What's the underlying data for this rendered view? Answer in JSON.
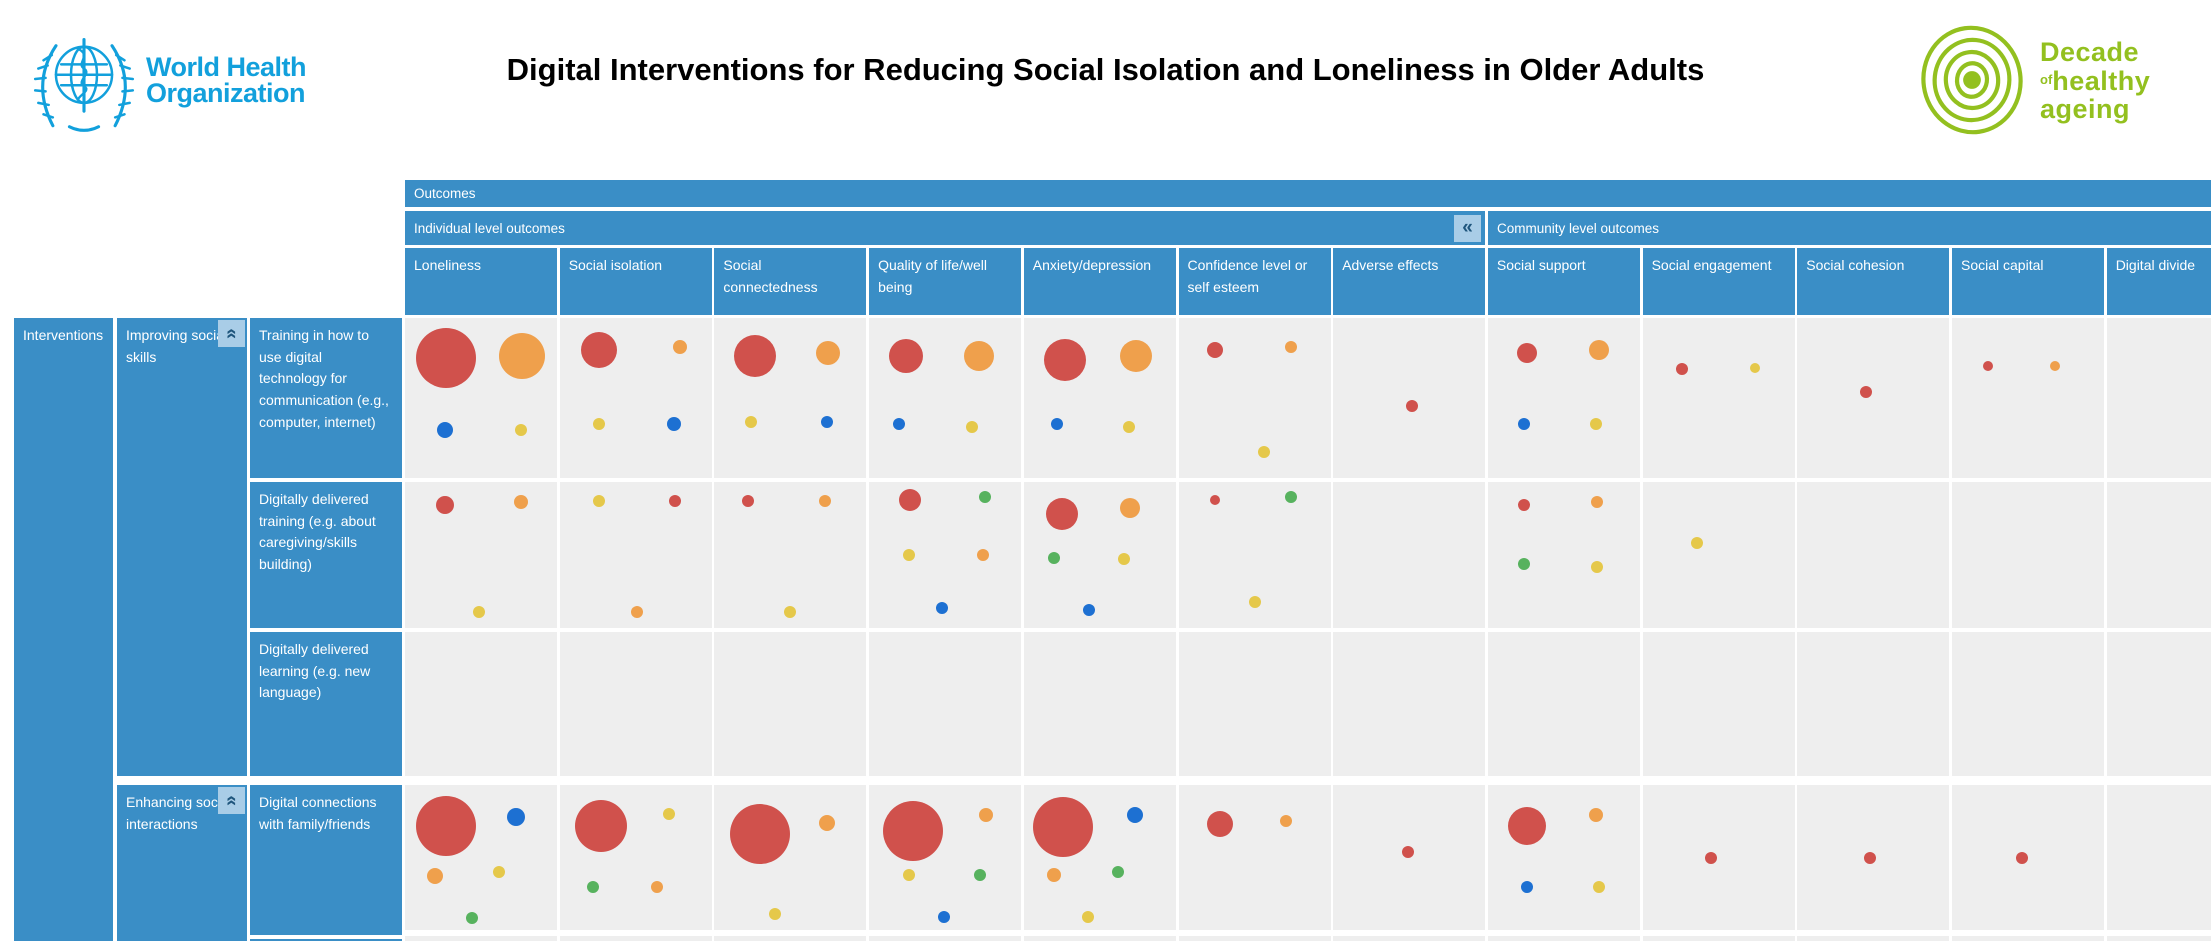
{
  "header": {
    "title": "Digital Interventions for Reducing Social Isolation and Loneliness in Older Adults",
    "who_logo": {
      "line1": "World Health",
      "line2": "Organization"
    },
    "decade_logo": {
      "word1": "Decade",
      "word2_small": "of",
      "word2": "healthy",
      "word3": "ageing"
    }
  },
  "icons": {
    "collapse_columns": "«",
    "collapse_group": "«",
    "who_emblem": "who-globe-staff-laurel",
    "decade_emblem": "concentric-rings"
  },
  "colors": {
    "red": "#D0514C",
    "orange": "#EFA04C",
    "yellow": "#E5C84A",
    "blue": "#1D70D2",
    "green": "#57B25E",
    "header_blue": "#3A8EC6",
    "header_blue_light": "#A9CDE7",
    "chevron_dark": "#1F567D",
    "cell_bg": "#EEEEEE",
    "who_blue": "#12A0DC",
    "decade_green": "#93C01F"
  },
  "table": {
    "outcomes_label": "Outcomes",
    "interventions_label": "Interventions",
    "individual_header": "Individual level outcomes",
    "community_header": "Community level outcomes",
    "columns": [
      "Loneliness",
      "Social isolation",
      "Social connectedness",
      "Quality of life/well being",
      "Anxiety/depression",
      "Confidence level or self esteem",
      "Adverse effects",
      "Social support",
      "Social engagement",
      "Social cohesion",
      "Social capital",
      "Digital divide"
    ],
    "groups": [
      {
        "label": "Improving social skills",
        "rows": [
          {
            "label": "Training in how to use digital technology for communication (e.g., computer, internet)",
            "cells": [
              [
                {
                  "c": "red",
                  "r": 30,
                  "x": 27,
                  "y": 25
                },
                {
                  "c": "orange",
                  "r": 23,
                  "x": 77,
                  "y": 24
                },
                {
                  "c": "blue",
                  "r": 8,
                  "x": 26,
                  "y": 70
                },
                {
                  "c": "yellow",
                  "r": 6,
                  "x": 76,
                  "y": 70
                }
              ],
              [
                {
                  "c": "red",
                  "r": 18,
                  "x": 26,
                  "y": 20
                },
                {
                  "c": "orange",
                  "r": 7,
                  "x": 79,
                  "y": 18
                },
                {
                  "c": "yellow",
                  "r": 6,
                  "x": 26,
                  "y": 66
                },
                {
                  "c": "blue",
                  "r": 7,
                  "x": 75,
                  "y": 66
                }
              ],
              [
                {
                  "c": "red",
                  "r": 21,
                  "x": 27,
                  "y": 24
                },
                {
                  "c": "orange",
                  "r": 12,
                  "x": 75,
                  "y": 22
                },
                {
                  "c": "yellow",
                  "r": 6,
                  "x": 24,
                  "y": 65
                },
                {
                  "c": "blue",
                  "r": 6,
                  "x": 74,
                  "y": 65
                }
              ],
              [
                {
                  "c": "red",
                  "r": 17,
                  "x": 24,
                  "y": 24
                },
                {
                  "c": "orange",
                  "r": 15,
                  "x": 72,
                  "y": 24
                },
                {
                  "c": "blue",
                  "r": 6,
                  "x": 20,
                  "y": 66
                },
                {
                  "c": "yellow",
                  "r": 6,
                  "x": 68,
                  "y": 68
                }
              ],
              [
                {
                  "c": "red",
                  "r": 21,
                  "x": 27,
                  "y": 26
                },
                {
                  "c": "orange",
                  "r": 16,
                  "x": 74,
                  "y": 24
                },
                {
                  "c": "blue",
                  "r": 6,
                  "x": 22,
                  "y": 66
                },
                {
                  "c": "yellow",
                  "r": 6,
                  "x": 69,
                  "y": 68
                }
              ],
              [
                {
                  "c": "red",
                  "r": 8,
                  "x": 24,
                  "y": 20
                },
                {
                  "c": "orange",
                  "r": 6,
                  "x": 74,
                  "y": 18
                },
                {
                  "c": "yellow",
                  "r": 6,
                  "x": 56,
                  "y": 84
                }
              ],
              [
                {
                  "c": "red",
                  "r": 6,
                  "x": 52,
                  "y": 55
                }
              ],
              [
                {
                  "c": "red",
                  "r": 10,
                  "x": 26,
                  "y": 22
                },
                {
                  "c": "orange",
                  "r": 10,
                  "x": 73,
                  "y": 20
                },
                {
                  "c": "blue",
                  "r": 6,
                  "x": 24,
                  "y": 66
                },
                {
                  "c": "yellow",
                  "r": 6,
                  "x": 71,
                  "y": 66
                }
              ],
              [
                {
                  "c": "red",
                  "r": 6,
                  "x": 26,
                  "y": 32
                },
                {
                  "c": "yellow",
                  "r": 5,
                  "x": 74,
                  "y": 31
                }
              ],
              [
                {
                  "c": "red",
                  "r": 6,
                  "x": 45,
                  "y": 46
                }
              ],
              [
                {
                  "c": "red",
                  "r": 5,
                  "x": 24,
                  "y": 30
                },
                {
                  "c": "orange",
                  "r": 5,
                  "x": 68,
                  "y": 30
                }
              ],
              []
            ]
          },
          {
            "label": "Digitally delivered training (e.g. about caregiving/skills building)",
            "cells": [
              [
                {
                  "c": "red",
                  "r": 9,
                  "x": 26,
                  "y": 16
                },
                {
                  "c": "orange",
                  "r": 7,
                  "x": 76,
                  "y": 14
                },
                {
                  "c": "yellow",
                  "r": 6,
                  "x": 49,
                  "y": 89
                }
              ],
              [
                {
                  "c": "yellow",
                  "r": 6,
                  "x": 26,
                  "y": 13
                },
                {
                  "c": "red",
                  "r": 6,
                  "x": 76,
                  "y": 13
                },
                {
                  "c": "orange",
                  "r": 6,
                  "x": 51,
                  "y": 89
                }
              ],
              [
                {
                  "c": "red",
                  "r": 6,
                  "x": 22,
                  "y": 13
                },
                {
                  "c": "orange",
                  "r": 6,
                  "x": 73,
                  "y": 13
                },
                {
                  "c": "yellow",
                  "r": 6,
                  "x": 50,
                  "y": 89
                }
              ],
              [
                {
                  "c": "red",
                  "r": 11,
                  "x": 27,
                  "y": 12
                },
                {
                  "c": "green",
                  "r": 6,
                  "x": 76,
                  "y": 10
                },
                {
                  "c": "yellow",
                  "r": 6,
                  "x": 26,
                  "y": 50
                },
                {
                  "c": "orange",
                  "r": 6,
                  "x": 75,
                  "y": 50
                },
                {
                  "c": "blue",
                  "r": 6,
                  "x": 48,
                  "y": 86
                }
              ],
              [
                {
                  "c": "red",
                  "r": 16,
                  "x": 25,
                  "y": 22
                },
                {
                  "c": "orange",
                  "r": 10,
                  "x": 70,
                  "y": 18
                },
                {
                  "c": "green",
                  "r": 6,
                  "x": 20,
                  "y": 52
                },
                {
                  "c": "yellow",
                  "r": 6,
                  "x": 66,
                  "y": 53
                },
                {
                  "c": "blue",
                  "r": 6,
                  "x": 43,
                  "y": 88
                }
              ],
              [
                {
                  "c": "red",
                  "r": 5,
                  "x": 24,
                  "y": 12
                },
                {
                  "c": "green",
                  "r": 6,
                  "x": 74,
                  "y": 10
                },
                {
                  "c": "yellow",
                  "r": 6,
                  "x": 50,
                  "y": 82
                }
              ],
              [],
              [
                {
                  "c": "red",
                  "r": 6,
                  "x": 24,
                  "y": 16
                },
                {
                  "c": "orange",
                  "r": 6,
                  "x": 72,
                  "y": 14
                },
                {
                  "c": "green",
                  "r": 6,
                  "x": 24,
                  "y": 56
                },
                {
                  "c": "yellow",
                  "r": 6,
                  "x": 72,
                  "y": 58
                }
              ],
              [
                {
                  "c": "yellow",
                  "r": 6,
                  "x": 36,
                  "y": 42
                }
              ],
              [],
              [],
              []
            ]
          },
          {
            "label": "Digitally delivered learning (e.g. new language)",
            "cells": [
              [],
              [],
              [],
              [],
              [],
              [],
              [],
              [],
              [],
              [],
              [],
              []
            ]
          }
        ]
      },
      {
        "label": "Enhancing social interactions",
        "rows": [
          {
            "label": "Digital connections with family/friends",
            "cells": [
              [
                {
                  "c": "red",
                  "r": 30,
                  "x": 27,
                  "y": 28
                },
                {
                  "c": "blue",
                  "r": 9,
                  "x": 73,
                  "y": 22
                },
                {
                  "c": "orange",
                  "r": 8,
                  "x": 20,
                  "y": 63
                },
                {
                  "c": "yellow",
                  "r": 6,
                  "x": 62,
                  "y": 60
                },
                {
                  "c": "green",
                  "r": 6,
                  "x": 44,
                  "y": 92
                }
              ],
              [
                {
                  "c": "red",
                  "r": 26,
                  "x": 27,
                  "y": 28
                },
                {
                  "c": "yellow",
                  "r": 6,
                  "x": 72,
                  "y": 20
                },
                {
                  "c": "green",
                  "r": 6,
                  "x": 22,
                  "y": 70
                },
                {
                  "c": "orange",
                  "r": 6,
                  "x": 64,
                  "y": 70
                }
              ],
              [
                {
                  "c": "red",
                  "r": 30,
                  "x": 30,
                  "y": 34
                },
                {
                  "c": "orange",
                  "r": 8,
                  "x": 74,
                  "y": 26
                },
                {
                  "c": "yellow",
                  "r": 6,
                  "x": 40,
                  "y": 89
                }
              ],
              [
                {
                  "c": "red",
                  "r": 30,
                  "x": 29,
                  "y": 32
                },
                {
                  "c": "orange",
                  "r": 7,
                  "x": 77,
                  "y": 21
                },
                {
                  "c": "yellow",
                  "r": 6,
                  "x": 26,
                  "y": 62
                },
                {
                  "c": "green",
                  "r": 6,
                  "x": 73,
                  "y": 62
                },
                {
                  "c": "blue",
                  "r": 6,
                  "x": 49,
                  "y": 91
                }
              ],
              [
                {
                  "c": "red",
                  "r": 30,
                  "x": 26,
                  "y": 29
                },
                {
                  "c": "blue",
                  "r": 8,
                  "x": 73,
                  "y": 21
                },
                {
                  "c": "orange",
                  "r": 7,
                  "x": 20,
                  "y": 62
                },
                {
                  "c": "green",
                  "r": 6,
                  "x": 62,
                  "y": 60
                },
                {
                  "c": "yellow",
                  "r": 6,
                  "x": 42,
                  "y": 91
                }
              ],
              [
                {
                  "c": "red",
                  "r": 13,
                  "x": 27,
                  "y": 27
                },
                {
                  "c": "orange",
                  "r": 6,
                  "x": 71,
                  "y": 25
                }
              ],
              [
                {
                  "c": "red",
                  "r": 6,
                  "x": 49,
                  "y": 46
                }
              ],
              [
                {
                  "c": "red",
                  "r": 19,
                  "x": 26,
                  "y": 28
                },
                {
                  "c": "orange",
                  "r": 7,
                  "x": 71,
                  "y": 21
                },
                {
                  "c": "blue",
                  "r": 6,
                  "x": 26,
                  "y": 70
                },
                {
                  "c": "yellow",
                  "r": 6,
                  "x": 73,
                  "y": 70
                }
              ],
              [
                {
                  "c": "red",
                  "r": 6,
                  "x": 45,
                  "y": 50
                }
              ],
              [
                {
                  "c": "red",
                  "r": 6,
                  "x": 48,
                  "y": 50
                }
              ],
              [
                {
                  "c": "red",
                  "r": 6,
                  "x": 46,
                  "y": 50
                }
              ],
              []
            ]
          }
        ]
      }
    ]
  }
}
